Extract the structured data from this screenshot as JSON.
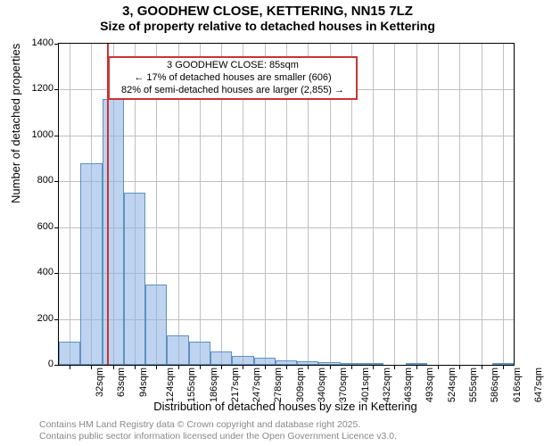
{
  "title": "3, GOODHEW CLOSE, KETTERING, NN15 7LZ",
  "subtitle": "Size of property relative to detached houses in Kettering",
  "ylabel": "Number of detached properties",
  "xlabel": "Distribution of detached houses by size in Kettering",
  "info_box": {
    "line1": "3 GOODHEW CLOSE: 85sqm",
    "line2": "← 17% of detached houses are smaller (606)",
    "line3": "82% of semi-detached houses are larger (2,855) →"
  },
  "chart": {
    "type": "histogram",
    "background_color": "#ffffff",
    "grid_color": "#c0c0c0",
    "bar_fill": "rgba(135,175,225,0.55)",
    "bar_border": "#6090c0",
    "marker_color": "#cc3333",
    "ylim": [
      0,
      1400
    ],
    "ytick_step": 200,
    "yticks": [
      0,
      200,
      400,
      600,
      800,
      1000,
      1200,
      1400
    ],
    "xticks": [
      "32sqm",
      "63sqm",
      "94sqm",
      "124sqm",
      "155sqm",
      "186sqm",
      "217sqm",
      "247sqm",
      "278sqm",
      "309sqm",
      "340sqm",
      "370sqm",
      "401sqm",
      "432sqm",
      "463sqm",
      "493sqm",
      "524sqm",
      "555sqm",
      "586sqm",
      "616sqm",
      "647sqm"
    ],
    "bar_values": [
      100,
      880,
      1160,
      750,
      350,
      130,
      100,
      60,
      40,
      30,
      20,
      15,
      10,
      2,
      5,
      0,
      2,
      0,
      0,
      0,
      2
    ],
    "marker_position_sqm": 85,
    "title_fontsize": 15,
    "label_fontsize": 13,
    "tick_fontsize": 11,
    "infobox_fontsize": 11
  },
  "footer_line1": "Contains HM Land Registry data © Crown copyright and database right 2025.",
  "footer_line2": "Contains public sector information licensed under the Open Government Licence v3.0."
}
